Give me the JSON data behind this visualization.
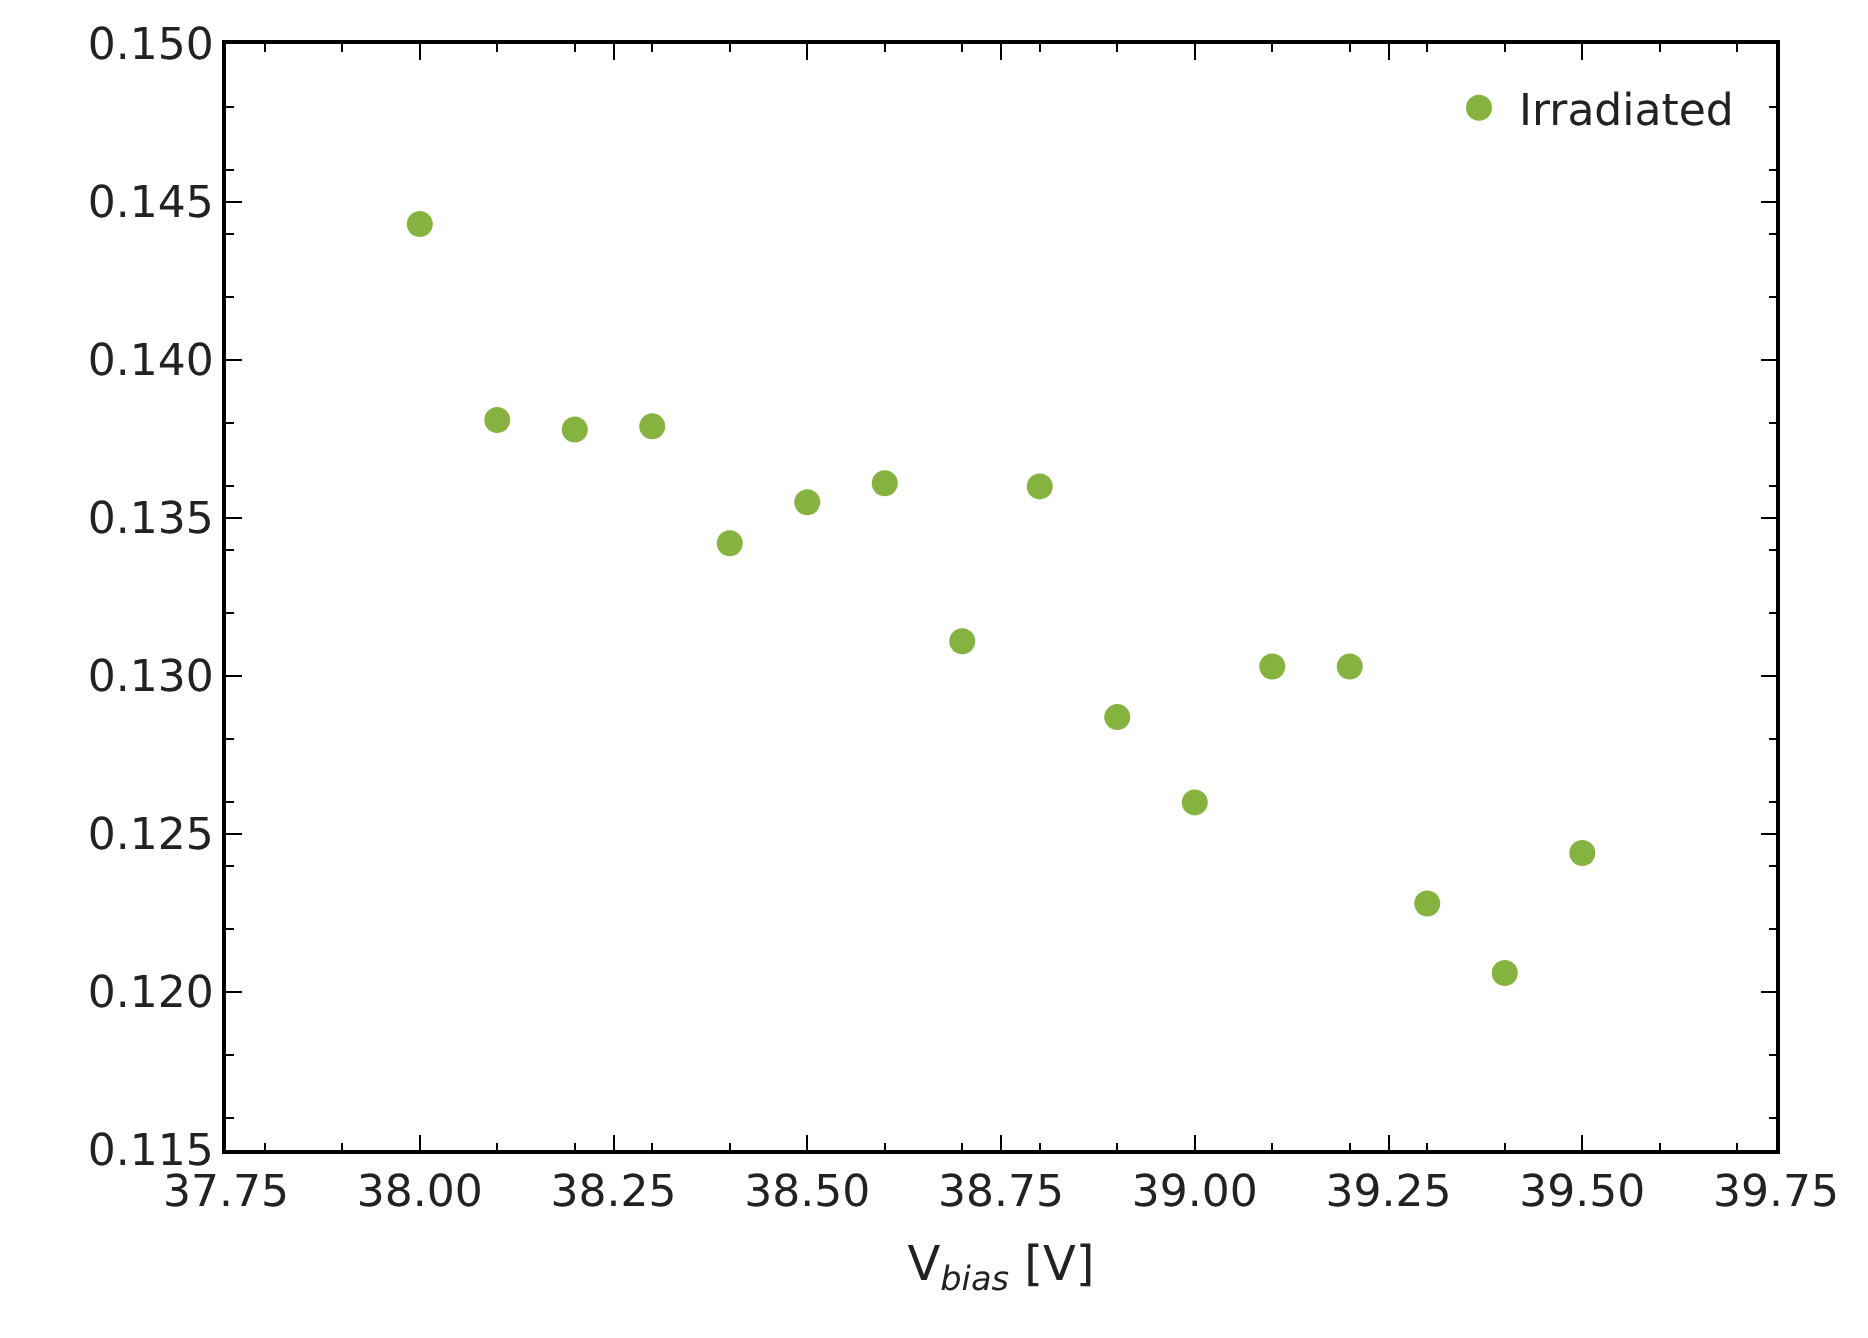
{
  "chart_data": {
    "type": "scatter",
    "xlabel": "V$_{bias}$ [V]",
    "x": [
      38.0,
      38.1,
      38.2,
      38.3,
      38.4,
      38.5,
      38.6,
      38.7,
      38.8,
      38.9,
      39.0,
      39.1,
      39.2,
      39.3,
      39.4,
      39.5
    ],
    "series": [
      {
        "name": "Irradiated",
        "color": "#86b340",
        "values": [
          0.1443,
          0.1381,
          0.1378,
          0.1379,
          0.1342,
          0.1355,
          0.1361,
          0.1311,
          0.136,
          0.1287,
          0.126,
          0.1303,
          0.1303,
          0.1228,
          0.1206,
          0.1244
        ]
      }
    ],
    "xlim": [
      37.75,
      39.75
    ],
    "xticks": [
      {
        "value": 37.75,
        "label": "37.75"
      },
      {
        "value": 38.0,
        "label": "38.00"
      },
      {
        "value": 38.25,
        "label": "38.25"
      },
      {
        "value": 38.5,
        "label": "38.50"
      },
      {
        "value": 38.75,
        "label": "38.75"
      },
      {
        "value": 39.0,
        "label": "39.00"
      },
      {
        "value": 39.25,
        "label": "39.25"
      },
      {
        "value": 39.5,
        "label": "39.50"
      },
      {
        "value": 39.75,
        "label": "39.75"
      }
    ],
    "ylim": [
      0.115,
      0.15
    ],
    "yticks": [
      0.115,
      {
        "value": 0.12,
        "label": "0.120"
      },
      0.125,
      {
        "value": 0.13,
        "label": "0.130"
      },
      0.135,
      {
        "value": 0.14,
        "label": "0.140"
      },
      0.145,
      {
        "value": 0.15,
        "label": "0.150"
      }
    ],
    "marker": "circle",
    "legend": "top right"
  }
}
